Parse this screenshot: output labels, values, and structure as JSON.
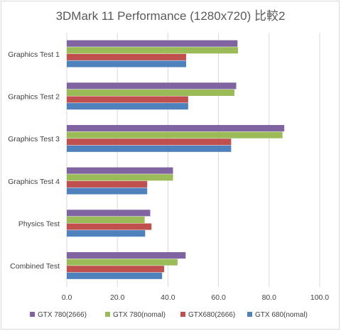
{
  "chart_data": {
    "type": "bar",
    "orientation": "horizontal",
    "title": "3DMark 11 Performance (1280x720) 比較2",
    "categories": [
      "Graphics Test 1",
      "Graphics Test 2",
      "Graphics Test 3",
      "Graphics Test 4",
      "Physics Test",
      "Combined Test"
    ],
    "series": [
      {
        "name": "GTX 780(2666)",
        "color": "#8064a2",
        "values": [
          67.5,
          67.0,
          86.0,
          42.0,
          33.0,
          47.0
        ]
      },
      {
        "name": "GTX 780(nomal)",
        "color": "#9bbb59",
        "values": [
          67.7,
          66.3,
          85.3,
          42.0,
          30.8,
          43.8
        ]
      },
      {
        "name": "GTX680(2666)",
        "color": "#c0504d",
        "values": [
          47.2,
          48.0,
          65.0,
          31.8,
          33.5,
          38.5
        ]
      },
      {
        "name": "GTX 680(nomal)",
        "color": "#4f81bd",
        "values": [
          47.2,
          48.0,
          65.0,
          31.8,
          31.0,
          37.7
        ]
      }
    ],
    "xlim": [
      0,
      100
    ],
    "xticks": [
      "0.0",
      "20.0",
      "40.0",
      "60.0",
      "80.0",
      "100.0"
    ],
    "grid": true,
    "legend_position": "bottom"
  }
}
